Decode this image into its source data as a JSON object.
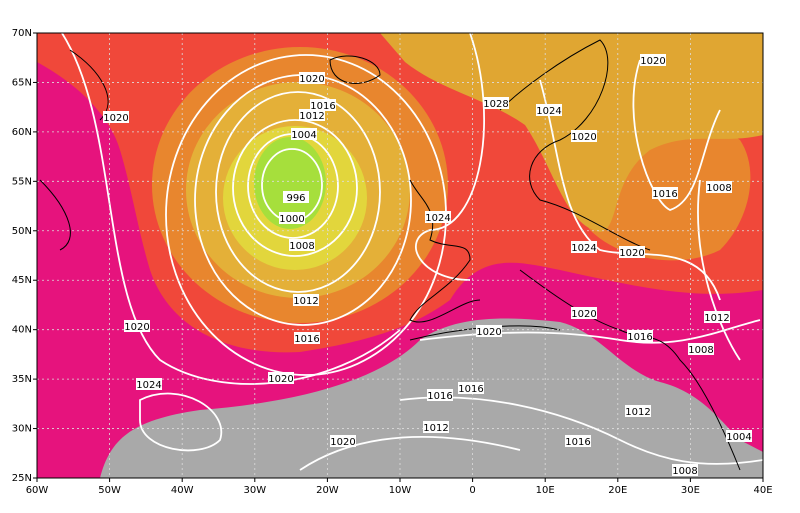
{
  "lat_labels": [
    "70N",
    "65N",
    "60N",
    "55N",
    "50N",
    "45N",
    "40N",
    "35N",
    "30N",
    "25N"
  ],
  "lon_labels": [
    "60W",
    "50W",
    "40W",
    "30W",
    "20W",
    "10W",
    "0",
    "10E",
    "20E",
    "30E",
    "40E"
  ],
  "isobar_labels": [
    1020,
    1016,
    1012,
    1004,
    996,
    1000,
    1008,
    1012,
    1016,
    1020,
    1024,
    1020,
    1020,
    1020,
    1028,
    1024,
    1020,
    1020,
    1016,
    1008,
    1024,
    1024,
    1020,
    1020,
    1020,
    1016,
    1012,
    1008,
    1016,
    1016,
    1012,
    1012,
    1016,
    1004,
    1008
  ]
}
